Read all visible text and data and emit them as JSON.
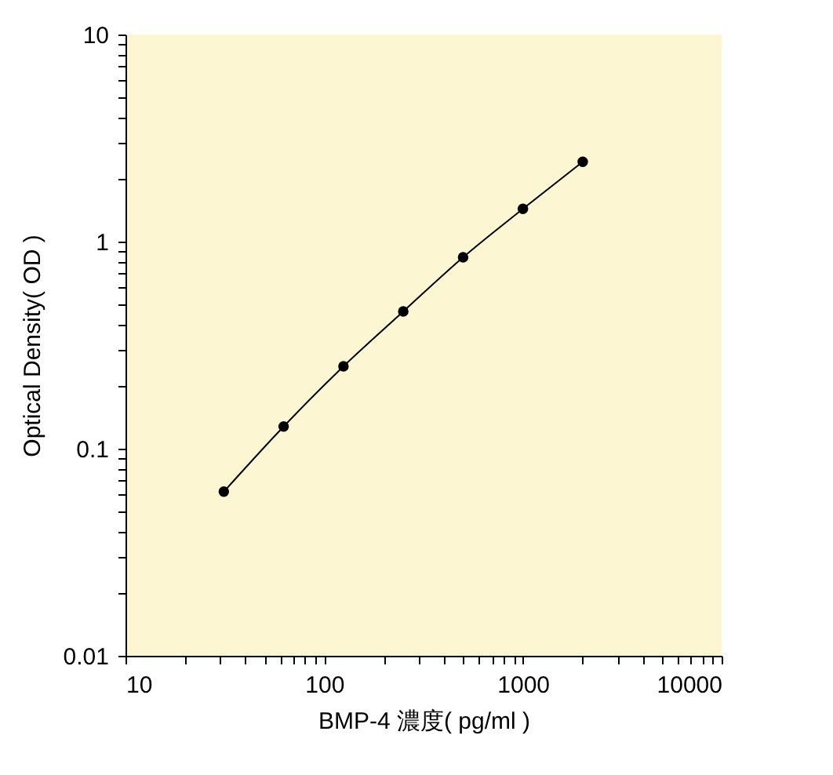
{
  "chart_data": {
    "type": "line",
    "xlabel": "BMP-4 濃度( pg/ml )",
    "ylabel": "Optical Density( OD )",
    "x": [
      31.25,
      62.5,
      125,
      250,
      500,
      1000,
      2000
    ],
    "series": [
      {
        "color": "#000000",
        "values": [
          0.062,
          0.128,
          0.25,
          0.46,
          0.84,
          1.44,
          2.43
        ]
      }
    ],
    "log": "xy",
    "marker": "circle",
    "line_style": "solid",
    "grid": false,
    "xlim": [
      10,
      10000
    ],
    "ylim": [
      0.01,
      10
    ],
    "xticks": [
      10,
      {
        "value": 20,
        "label": null
      },
      {
        "value": 30,
        "label": null
      },
      {
        "value": 40,
        "label": null
      },
      {
        "value": 50,
        "label": null
      },
      {
        "value": 60,
        "label": null
      },
      {
        "value": 70,
        "label": null
      },
      {
        "value": 80,
        "label": null
      },
      {
        "value": 90,
        "label": null
      },
      100,
      {
        "value": 200,
        "label": null
      },
      {
        "value": 300,
        "label": null
      },
      {
        "value": 400,
        "label": null
      },
      {
        "value": 500,
        "label": null
      },
      {
        "value": 600,
        "label": null
      },
      {
        "value": 700,
        "label": null
      },
      {
        "value": 800,
        "label": null
      },
      {
        "value": 900,
        "label": null
      },
      1000,
      {
        "value": 2000,
        "label": null
      },
      {
        "value": 3000,
        "label": null
      },
      {
        "value": 4000,
        "label": null
      },
      {
        "value": 5000,
        "label": null
      },
      {
        "value": 6000,
        "label": null
      },
      {
        "value": 7000,
        "label": null
      },
      {
        "value": 8000,
        "label": null
      },
      {
        "value": 9000,
        "label": null
      },
      10000
    ],
    "yticks": [
      0.01,
      {
        "value": 0.02,
        "label": null
      },
      {
        "value": 0.03,
        "label": null
      },
      {
        "value": 0.04,
        "label": null
      },
      {
        "value": 0.05,
        "label": null
      },
      {
        "value": 0.06,
        "label": null
      },
      {
        "value": 0.07,
        "label": null
      },
      {
        "value": 0.08,
        "label": null
      },
      {
        "value": 0.09,
        "label": null
      },
      0.1,
      {
        "value": 0.2,
        "label": null
      },
      {
        "value": 0.3,
        "label": null
      },
      {
        "value": 0.4,
        "label": null
      },
      {
        "value": 0.5,
        "label": null
      },
      {
        "value": 0.6,
        "label": null
      },
      {
        "value": 0.7,
        "label": null
      },
      {
        "value": 0.8,
        "label": null
      },
      {
        "value": 0.9,
        "label": null
      },
      1,
      {
        "value": 2,
        "label": null
      },
      {
        "value": 3,
        "label": null
      },
      {
        "value": 4,
        "label": null
      },
      {
        "value": 5,
        "label": null
      },
      {
        "value": 6,
        "label": null
      },
      {
        "value": 7,
        "label": null
      },
      {
        "value": 8,
        "label": null
      },
      {
        "value": 9,
        "label": null
      },
      10
    ]
  }
}
